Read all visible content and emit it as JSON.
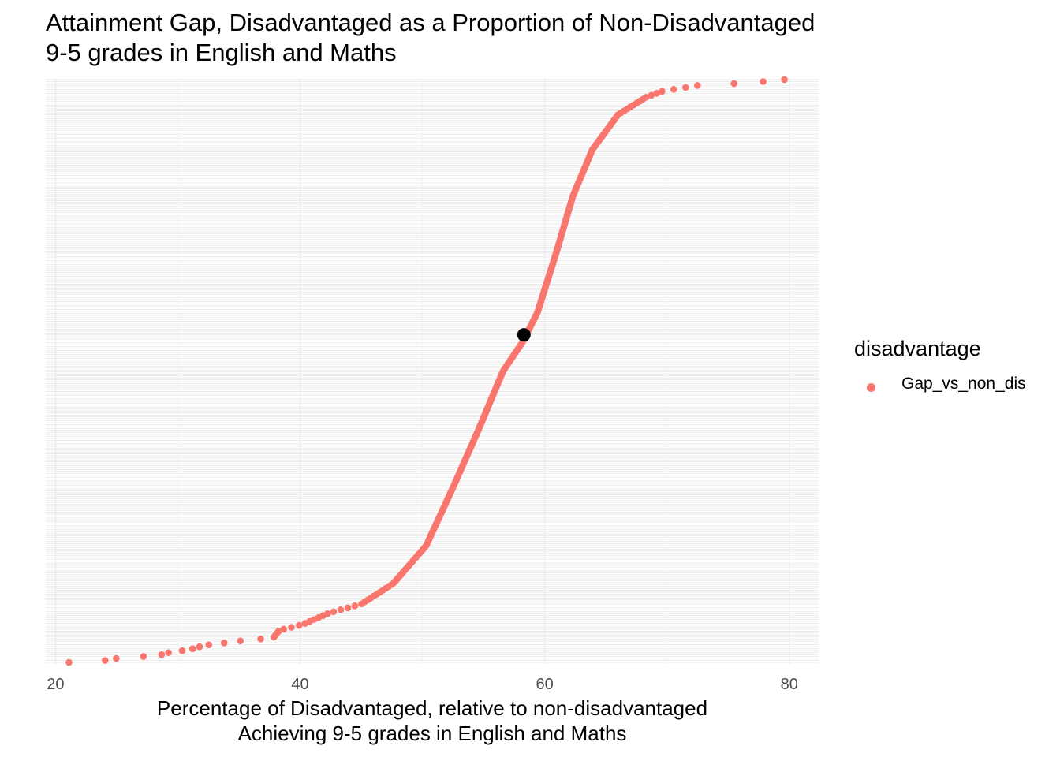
{
  "chart_data": {
    "type": "scatter",
    "title": "Attainment Gap, Disadvantaged as a Proportion of Non-Disadvantaged",
    "subtitle": "9-5 grades in English and Maths",
    "xlabel": "Percentage of Disadvantaged, relative to non-disadvantaged",
    "xlabel_line2": "Achieving 9-5 grades in English and Maths",
    "ylabel": "",
    "xlim": [
      19.2,
      82.4
    ],
    "x_ticks": [
      20,
      40,
      60,
      80
    ],
    "y_axis": "rank (no tick labels)",
    "grid": true,
    "legend": {
      "title": "disadvantage",
      "position": "right",
      "entries": [
        {
          "label": "Gap_vs_non_dis",
          "color": "#F8766D"
        }
      ]
    },
    "series": [
      {
        "name": "Gap_vs_non_dis",
        "color": "#F8766D",
        "quantile_points": [
          [
            0,
            21.1
          ],
          [
            0.003,
            24.0
          ],
          [
            0.006,
            24.5
          ],
          [
            0.012,
            28.5
          ],
          [
            0.016,
            29.0
          ],
          [
            0.022,
            31.0
          ],
          [
            0.026,
            31.6
          ],
          [
            0.03,
            32.5
          ],
          [
            0.034,
            34.0
          ],
          [
            0.038,
            35.6
          ],
          [
            0.042,
            37.8
          ],
          [
            0.055,
            38.3
          ],
          [
            0.065,
            40.2
          ],
          [
            0.085,
            42.4
          ],
          [
            0.1,
            45.0
          ],
          [
            0.135,
            47.6
          ],
          [
            0.2,
            50.3
          ],
          [
            0.3,
            52.5
          ],
          [
            0.4,
            54.6
          ],
          [
            0.5,
            56.6
          ],
          [
            0.55,
            58.2
          ],
          [
            0.6,
            59.4
          ],
          [
            0.7,
            60.9
          ],
          [
            0.8,
            62.3
          ],
          [
            0.88,
            63.9
          ],
          [
            0.94,
            66.0
          ],
          [
            0.97,
            68.3
          ],
          [
            0.98,
            69.6
          ],
          [
            0.99,
            72.5
          ],
          [
            0.995,
            77.0
          ],
          [
            1.0,
            79.6
          ]
        ],
        "n_points": 300
      }
    ],
    "highlight": {
      "x": 58.3,
      "quantile": 0.562,
      "color": "#000000"
    }
  }
}
